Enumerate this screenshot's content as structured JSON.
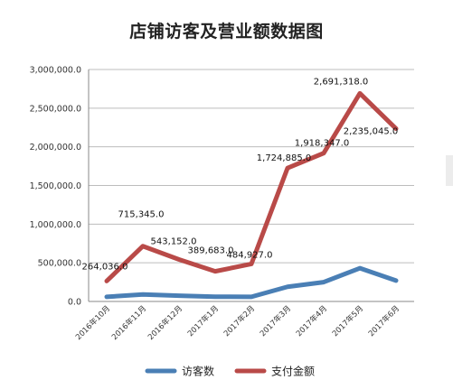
{
  "chart_data": {
    "type": "line",
    "title": "店铺访客及营业额数据图",
    "categories": [
      "2016年10月",
      "2016年11月",
      "2016年12月",
      "2017年1月",
      "2017年2月",
      "2017年3月",
      "2017年4月",
      "2017年5月",
      "2017年6月"
    ],
    "ylim": [
      0,
      3000000
    ],
    "yticks": [
      0,
      500000,
      1000000,
      1500000,
      2000000,
      2500000,
      3000000
    ],
    "ytick_labels": [
      "0.0",
      "500,000.0",
      "1,000,000.0",
      "1,500,000.0",
      "2,000,000.0",
      "2,500,000.0",
      "3,000,000.0"
    ],
    "grid": true,
    "legend": "bottom",
    "series": [
      {
        "name": "访客数",
        "color": "#4a7fb5",
        "values": [
          60000,
          90000,
          75000,
          62000,
          60000,
          190000,
          250000,
          430000,
          270000
        ]
      },
      {
        "name": "支付金额",
        "color": "#b94a48",
        "values": [
          264036,
          715345,
          543152,
          389683,
          484927,
          1724885,
          1918347,
          2691318,
          2235045
        ],
        "labels": [
          "264,036.0",
          "715,345.0",
          "543,152.0",
          "389,683.0",
          "484,927.0",
          "1,724,885.0",
          "1,918,347.0",
          "2,691,318.0",
          "2,235,045.0"
        ]
      }
    ]
  }
}
